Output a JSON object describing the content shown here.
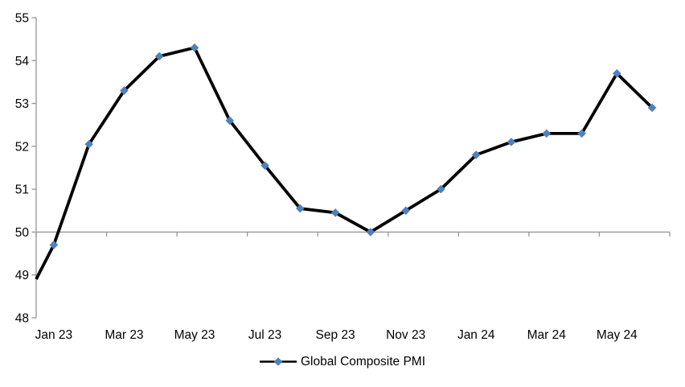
{
  "chart_data": {
    "type": "line",
    "title": "",
    "xlabel": "",
    "ylabel": "",
    "series": [
      {
        "name": "Global Composite PMI",
        "x": [
          "Jan 23",
          "Feb 23",
          "Mar 23",
          "Apr 23",
          "May 23",
          "Jun 23",
          "Jul 23",
          "Aug 23",
          "Sep 23",
          "Oct 23",
          "Nov 23",
          "Dec 23",
          "Jan 24",
          "Feb 24",
          "Mar 24",
          "Apr 24",
          "May 24",
          "Jun 24"
        ],
        "values": [
          49.7,
          52.05,
          53.3,
          54.1,
          54.3,
          52.6,
          51.55,
          50.55,
          50.45,
          50.0,
          50.5,
          51.0,
          51.8,
          52.1,
          52.3,
          52.3,
          53.7,
          52.9
        ],
        "clipped_leading_point": {
          "value_at_axis": 48.9
        },
        "line_color": "#000000",
        "marker": {
          "shape": "diamond",
          "color": "#4F81BD",
          "size": 10.6
        }
      }
    ],
    "x_tick_labels": [
      "Jan 23",
      "Mar 23",
      "May 23",
      "Jul 23",
      "Sep 23",
      "Nov 23",
      "Jan 24",
      "Mar 24",
      "May 24"
    ],
    "x_tick_interval": 2,
    "y_ticks": [
      55,
      54,
      53,
      52,
      51,
      50,
      49,
      48
    ],
    "ylim": [
      48,
      55
    ],
    "x_axis_crosses_at": 50,
    "grid": false,
    "legend_position": "bottom",
    "axis_color": "#969696",
    "text_color": "#000000",
    "background": "#FFFFFF"
  }
}
